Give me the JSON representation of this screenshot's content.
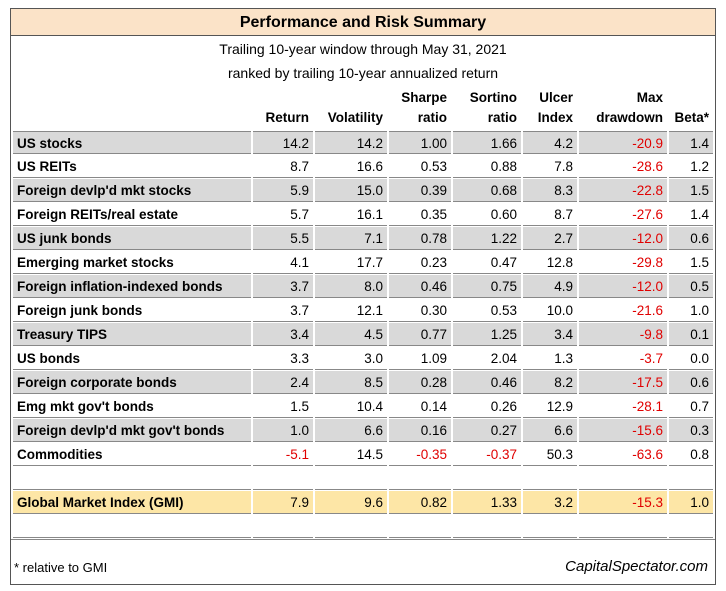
{
  "title": "Performance and Risk Summary",
  "subtitle": [
    "Trailing 10-year window through May 31, 2021",
    "ranked by trailing 10-year annualized return"
  ],
  "table": {
    "columns": [
      [
        "Return"
      ],
      [
        "Volatility"
      ],
      [
        "Sharpe",
        "ratio"
      ],
      [
        "Sortino",
        "ratio"
      ],
      [
        "Ulcer",
        "Index"
      ],
      [
        "Max",
        "drawdown"
      ],
      [
        "Beta*"
      ]
    ],
    "rows": [
      [
        "US stocks",
        "14.2",
        "14.2",
        "1.00",
        "1.66",
        "4.2",
        "-20.9",
        "1.4"
      ],
      [
        "US REITs",
        "8.7",
        "16.6",
        "0.53",
        "0.88",
        "7.8",
        "-28.6",
        "1.2"
      ],
      [
        "Foreign devlp'd mkt stocks",
        "5.9",
        "15.0",
        "0.39",
        "0.68",
        "8.3",
        "-22.8",
        "1.5"
      ],
      [
        "Foreign REITs/real estate",
        "5.7",
        "16.1",
        "0.35",
        "0.60",
        "8.7",
        "-27.6",
        "1.4"
      ],
      [
        "US junk bonds",
        "5.5",
        "7.1",
        "0.78",
        "1.22",
        "2.7",
        "-12.0",
        "0.6"
      ],
      [
        "Emerging market stocks",
        "4.1",
        "17.7",
        "0.23",
        "0.47",
        "12.8",
        "-29.8",
        "1.5"
      ],
      [
        "Foreign inflation-indexed bonds",
        "3.7",
        "8.0",
        "0.46",
        "0.75",
        "4.9",
        "-12.0",
        "0.5"
      ],
      [
        "Foreign junk bonds",
        "3.7",
        "12.1",
        "0.30",
        "0.53",
        "10.0",
        "-21.6",
        "1.0"
      ],
      [
        "Treasury TIPS",
        "3.4",
        "4.5",
        "0.77",
        "1.25",
        "3.4",
        "-9.8",
        "0.1"
      ],
      [
        "US bonds",
        "3.3",
        "3.0",
        "1.09",
        "2.04",
        "1.3",
        "-3.7",
        "0.0"
      ],
      [
        "Foreign corporate bonds",
        "2.4",
        "8.5",
        "0.28",
        "0.46",
        "8.2",
        "-17.5",
        "0.6"
      ],
      [
        "Emg mkt gov't bonds",
        "1.5",
        "10.4",
        "0.14",
        "0.26",
        "12.9",
        "-28.1",
        "0.7"
      ],
      [
        "Foreign devlp'd mkt gov't bonds",
        "1.0",
        "6.6",
        "0.16",
        "0.27",
        "6.6",
        "-15.6",
        "0.3"
      ],
      [
        "Commodities",
        "-5.1",
        "14.5",
        "-0.35",
        "-0.37",
        "50.3",
        "-63.6",
        "0.8"
      ]
    ],
    "summary_row": [
      "Global Market Index (GMI)",
      "7.9",
      "9.6",
      "0.82",
      "1.33",
      "3.2",
      "-15.3",
      "1.0"
    ]
  },
  "footnote": "* relative to GMI",
  "source": "CapitalSpectator.com"
}
